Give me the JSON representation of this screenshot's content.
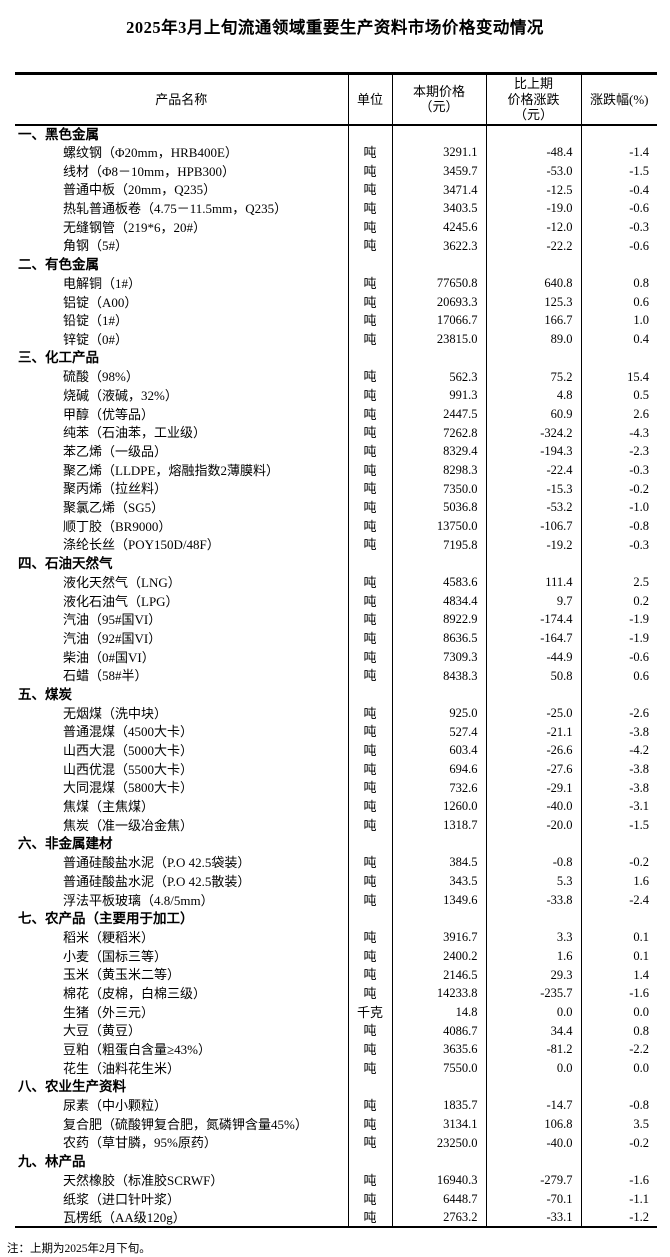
{
  "title": "2025年3月上旬流通领域重要生产资料市场价格变动情况",
  "note": "注：上期为2025年2月下旬。",
  "colors": {
    "background": "#ffffff",
    "text": "#000000",
    "border": "#000000"
  },
  "table": {
    "headers": {
      "product": "产品名称",
      "unit": "单位",
      "price_lines": [
        "本期价格",
        "（元）"
      ],
      "change_lines": [
        "比上期",
        "价格涨跌",
        "（元）"
      ],
      "pct": "涨跌幅(%)"
    },
    "sections": [
      {
        "label": "一、黑色金属",
        "rows": [
          {
            "name": "螺纹钢（Φ20mm，HRB400E）",
            "unit": "吨",
            "price": "3291.1",
            "change": "-48.4",
            "pct": "-1.4"
          },
          {
            "name": "线材（Φ8－10mm，HPB300）",
            "unit": "吨",
            "price": "3459.7",
            "change": "-53.0",
            "pct": "-1.5"
          },
          {
            "name": "普通中板（20mm，Q235）",
            "unit": "吨",
            "price": "3471.4",
            "change": "-12.5",
            "pct": "-0.4"
          },
          {
            "name": "热轧普通板卷（4.75－11.5mm，Q235）",
            "unit": "吨",
            "price": "3403.5",
            "change": "-19.0",
            "pct": "-0.6"
          },
          {
            "name": "无缝钢管（219*6，20#）",
            "unit": "吨",
            "price": "4245.6",
            "change": "-12.0",
            "pct": "-0.3"
          },
          {
            "name": "角钢（5#）",
            "unit": "吨",
            "price": "3622.3",
            "change": "-22.2",
            "pct": "-0.6"
          }
        ]
      },
      {
        "label": "二、有色金属",
        "rows": [
          {
            "name": "电解铜（1#）",
            "unit": "吨",
            "price": "77650.8",
            "change": "640.8",
            "pct": "0.8"
          },
          {
            "name": "铝锭（A00）",
            "unit": "吨",
            "price": "20693.3",
            "change": "125.3",
            "pct": "0.6"
          },
          {
            "name": "铅锭（1#）",
            "unit": "吨",
            "price": "17066.7",
            "change": "166.7",
            "pct": "1.0"
          },
          {
            "name": "锌锭（0#）",
            "unit": "吨",
            "price": "23815.0",
            "change": "89.0",
            "pct": "0.4"
          }
        ]
      },
      {
        "label": "三、化工产品",
        "rows": [
          {
            "name": "硫酸（98%）",
            "unit": "吨",
            "price": "562.3",
            "change": "75.2",
            "pct": "15.4"
          },
          {
            "name": "烧碱（液碱，32%）",
            "unit": "吨",
            "price": "991.3",
            "change": "4.8",
            "pct": "0.5"
          },
          {
            "name": "甲醇（优等品）",
            "unit": "吨",
            "price": "2447.5",
            "change": "60.9",
            "pct": "2.6"
          },
          {
            "name": "纯苯（石油苯，工业级）",
            "unit": "吨",
            "price": "7262.8",
            "change": "-324.2",
            "pct": "-4.3"
          },
          {
            "name": "苯乙烯（一级品）",
            "unit": "吨",
            "price": "8329.4",
            "change": "-194.3",
            "pct": "-2.3"
          },
          {
            "name": "聚乙烯（LLDPE，熔融指数2薄膜料）",
            "unit": "吨",
            "price": "8298.3",
            "change": "-22.4",
            "pct": "-0.3"
          },
          {
            "name": "聚丙烯（拉丝料）",
            "unit": "吨",
            "price": "7350.0",
            "change": "-15.3",
            "pct": "-0.2"
          },
          {
            "name": "聚氯乙烯（SG5）",
            "unit": "吨",
            "price": "5036.8",
            "change": "-53.2",
            "pct": "-1.0"
          },
          {
            "name": "顺丁胶（BR9000）",
            "unit": "吨",
            "price": "13750.0",
            "change": "-106.7",
            "pct": "-0.8"
          },
          {
            "name": "涤纶长丝（POY150D/48F）",
            "unit": "吨",
            "price": "7195.8",
            "change": "-19.2",
            "pct": "-0.3"
          }
        ]
      },
      {
        "label": "四、石油天然气",
        "rows": [
          {
            "name": "液化天然气（LNG）",
            "unit": "吨",
            "price": "4583.6",
            "change": "111.4",
            "pct": "2.5"
          },
          {
            "name": "液化石油气（LPG）",
            "unit": "吨",
            "price": "4834.4",
            "change": "9.7",
            "pct": "0.2"
          },
          {
            "name": "汽油（95#国VI）",
            "unit": "吨",
            "price": "8922.9",
            "change": "-174.4",
            "pct": "-1.9"
          },
          {
            "name": "汽油（92#国VI）",
            "unit": "吨",
            "price": "8636.5",
            "change": "-164.7",
            "pct": "-1.9"
          },
          {
            "name": "柴油（0#国VI）",
            "unit": "吨",
            "price": "7309.3",
            "change": "-44.9",
            "pct": "-0.6"
          },
          {
            "name": "石蜡（58#半）",
            "unit": "吨",
            "price": "8438.3",
            "change": "50.8",
            "pct": "0.6"
          }
        ]
      },
      {
        "label": "五、煤炭",
        "rows": [
          {
            "name": "无烟煤（洗中块）",
            "unit": "吨",
            "price": "925.0",
            "change": "-25.0",
            "pct": "-2.6"
          },
          {
            "name": "普通混煤（4500大卡）",
            "unit": "吨",
            "price": "527.4",
            "change": "-21.1",
            "pct": "-3.8"
          },
          {
            "name": "山西大混（5000大卡）",
            "unit": "吨",
            "price": "603.4",
            "change": "-26.6",
            "pct": "-4.2"
          },
          {
            "name": "山西优混（5500大卡）",
            "unit": "吨",
            "price": "694.6",
            "change": "-27.6",
            "pct": "-3.8"
          },
          {
            "name": "大同混煤（5800大卡）",
            "unit": "吨",
            "price": "732.6",
            "change": "-29.1",
            "pct": "-3.8"
          },
          {
            "name": "焦煤（主焦煤）",
            "unit": "吨",
            "price": "1260.0",
            "change": "-40.0",
            "pct": "-3.1"
          },
          {
            "name": "焦炭（准一级冶金焦）",
            "unit": "吨",
            "price": "1318.7",
            "change": "-20.0",
            "pct": "-1.5"
          }
        ]
      },
      {
        "label": "六、非金属建材",
        "rows": [
          {
            "name": "普通硅酸盐水泥（P.O 42.5袋装）",
            "unit": "吨",
            "price": "384.5",
            "change": "-0.8",
            "pct": "-0.2"
          },
          {
            "name": "普通硅酸盐水泥（P.O 42.5散装）",
            "unit": "吨",
            "price": "343.5",
            "change": "5.3",
            "pct": "1.6"
          },
          {
            "name": "浮法平板玻璃（4.8/5mm）",
            "unit": "吨",
            "price": "1349.6",
            "change": "-33.8",
            "pct": "-2.4"
          }
        ]
      },
      {
        "label": "七、农产品（主要用于加工）",
        "rows": [
          {
            "name": "稻米（粳稻米）",
            "unit": "吨",
            "price": "3916.7",
            "change": "3.3",
            "pct": "0.1"
          },
          {
            "name": "小麦（国标三等）",
            "unit": "吨",
            "price": "2400.2",
            "change": "1.6",
            "pct": "0.1"
          },
          {
            "name": "玉米（黄玉米二等）",
            "unit": "吨",
            "price": "2146.5",
            "change": "29.3",
            "pct": "1.4"
          },
          {
            "name": "棉花（皮棉，白棉三级）",
            "unit": "吨",
            "price": "14233.8",
            "change": "-235.7",
            "pct": "-1.6"
          },
          {
            "name": "生猪（外三元）",
            "unit": "千克",
            "price": "14.8",
            "change": "0.0",
            "pct": "0.0"
          },
          {
            "name": "大豆（黄豆）",
            "unit": "吨",
            "price": "4086.7",
            "change": "34.4",
            "pct": "0.8"
          },
          {
            "name": "豆粕（粗蛋白含量≥43%）",
            "unit": "吨",
            "price": "3635.6",
            "change": "-81.2",
            "pct": "-2.2"
          },
          {
            "name": "花生（油料花生米）",
            "unit": "吨",
            "price": "7550.0",
            "change": "0.0",
            "pct": "0.0"
          }
        ]
      },
      {
        "label": "八、农业生产资料",
        "rows": [
          {
            "name": "尿素（中小颗粒）",
            "unit": "吨",
            "price": "1835.7",
            "change": "-14.7",
            "pct": "-0.8"
          },
          {
            "name": "复合肥（硫酸钾复合肥，氮磷钾含量45%）",
            "unit": "吨",
            "price": "3134.1",
            "change": "106.8",
            "pct": "3.5"
          },
          {
            "name": "农药（草甘膦，95%原药）",
            "unit": "吨",
            "price": "23250.0",
            "change": "-40.0",
            "pct": "-0.2"
          }
        ]
      },
      {
        "label": "九、林产品",
        "rows": [
          {
            "name": "天然橡胶（标准胶SCRWF）",
            "unit": "吨",
            "price": "16940.3",
            "change": "-279.7",
            "pct": "-1.6"
          },
          {
            "name": "纸浆（进口针叶浆）",
            "unit": "吨",
            "price": "6448.7",
            "change": "-70.1",
            "pct": "-1.1"
          },
          {
            "name": "瓦楞纸（AA级120g）",
            "unit": "吨",
            "price": "2763.2",
            "change": "-33.1",
            "pct": "-1.2"
          }
        ]
      }
    ]
  }
}
